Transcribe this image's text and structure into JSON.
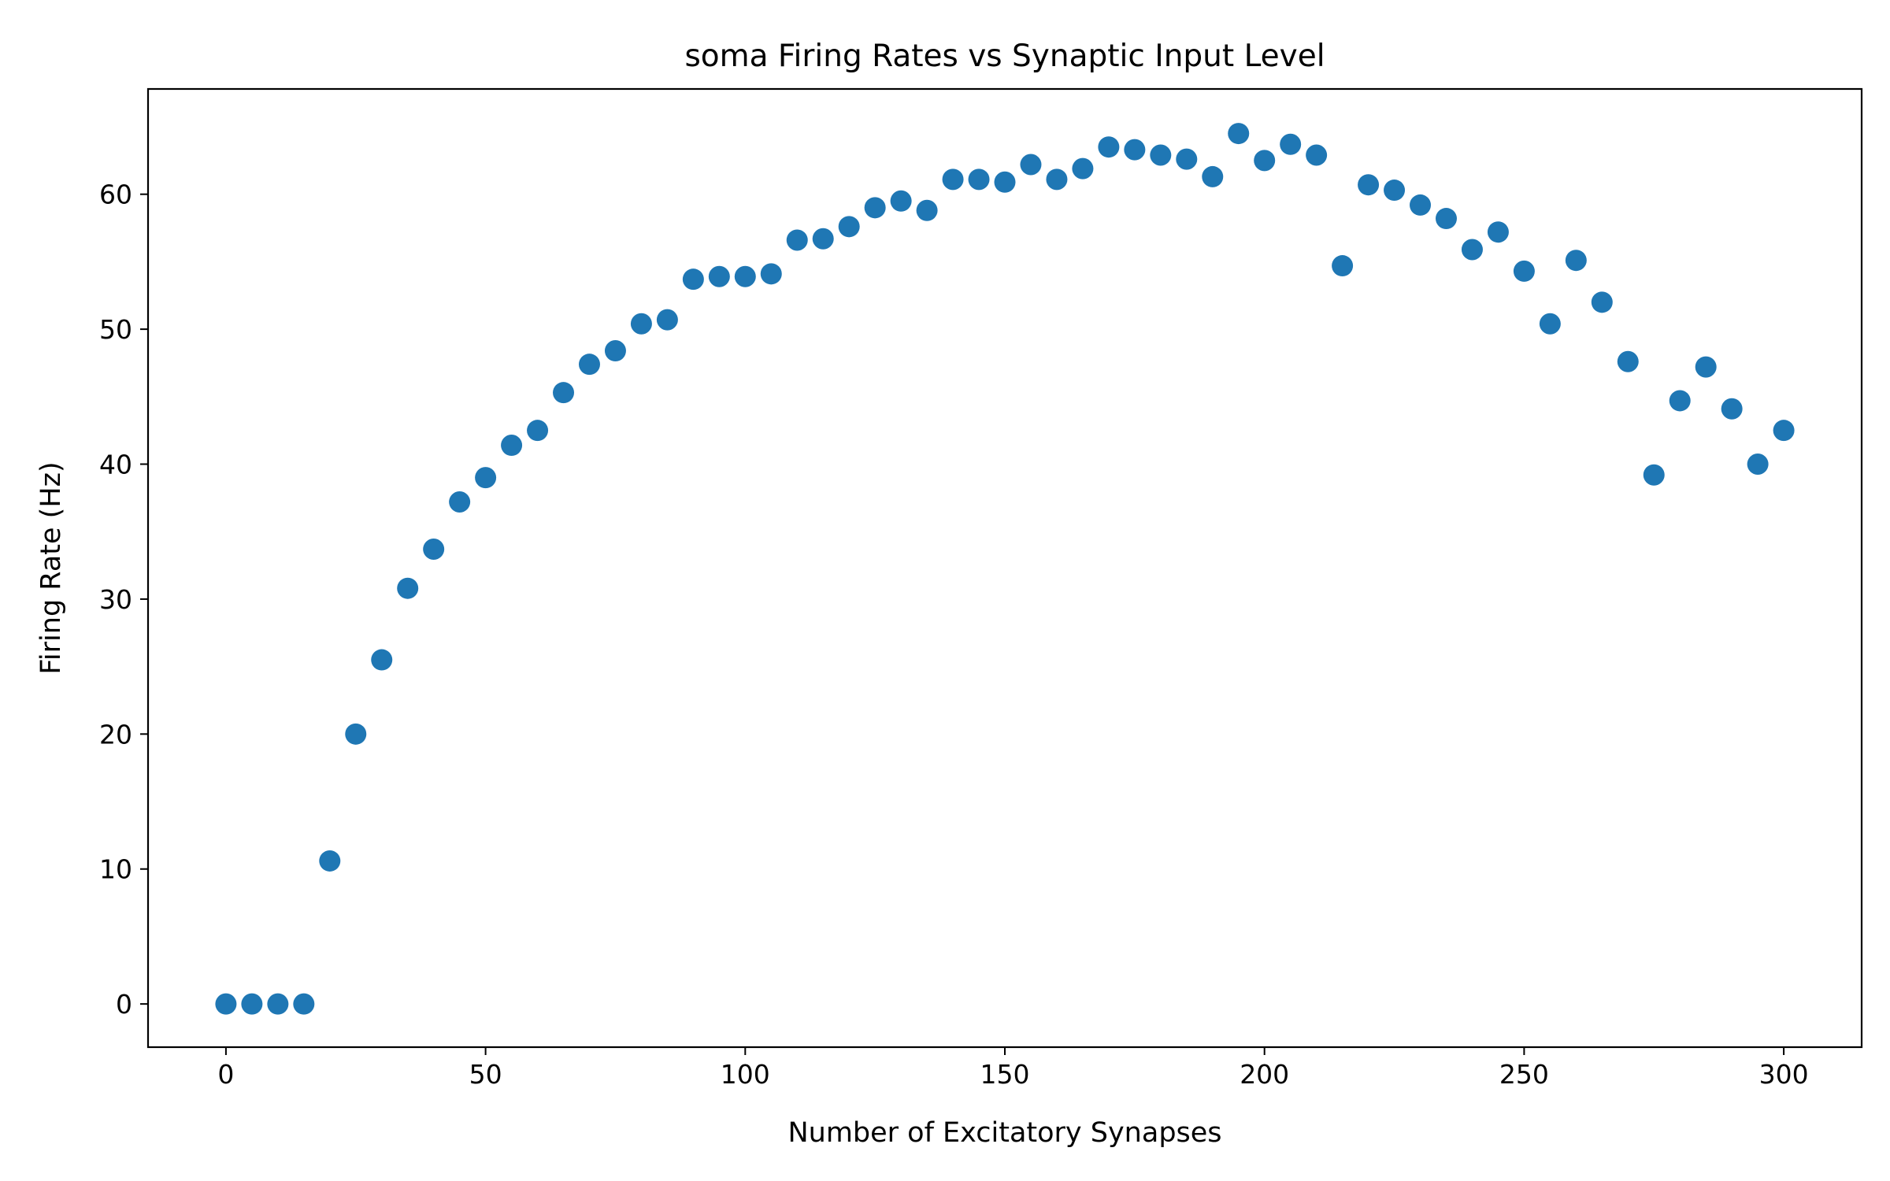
{
  "chart_data": {
    "type": "scatter",
    "title": "soma Firing Rates vs Synaptic Input Level",
    "xlabel": "Number of Excitatory Synapses",
    "ylabel": "Firing Rate (Hz)",
    "xlim": [
      -15,
      315
    ],
    "ylim": [
      -3.2,
      67.8
    ],
    "xticks": [
      0,
      50,
      100,
      150,
      200,
      250,
      300
    ],
    "yticks": [
      0,
      10,
      20,
      30,
      40,
      50,
      60
    ],
    "grid": false,
    "marker_color": "#1f77b4",
    "points": [
      [
        0,
        0
      ],
      [
        5,
        0
      ],
      [
        10,
        0
      ],
      [
        15,
        0
      ],
      [
        20,
        10.6
      ],
      [
        25,
        20.0
      ],
      [
        30,
        25.5
      ],
      [
        35,
        30.8
      ],
      [
        40,
        33.7
      ],
      [
        45,
        37.2
      ],
      [
        50,
        39.0
      ],
      [
        55,
        41.4
      ],
      [
        60,
        42.5
      ],
      [
        65,
        45.3
      ],
      [
        70,
        47.4
      ],
      [
        75,
        48.4
      ],
      [
        80,
        50.4
      ],
      [
        85,
        50.7
      ],
      [
        90,
        53.7
      ],
      [
        95,
        53.9
      ],
      [
        100,
        53.9
      ],
      [
        105,
        54.1
      ],
      [
        110,
        56.6
      ],
      [
        115,
        56.7
      ],
      [
        120,
        57.6
      ],
      [
        125,
        59.0
      ],
      [
        130,
        59.5
      ],
      [
        135,
        58.8
      ],
      [
        140,
        61.1
      ],
      [
        145,
        61.1
      ],
      [
        150,
        60.9
      ],
      [
        155,
        62.2
      ],
      [
        160,
        61.1
      ],
      [
        165,
        61.9
      ],
      [
        170,
        63.5
      ],
      [
        175,
        63.3
      ],
      [
        180,
        62.9
      ],
      [
        185,
        62.6
      ],
      [
        190,
        61.3
      ],
      [
        195,
        64.5
      ],
      [
        200,
        62.5
      ],
      [
        205,
        63.7
      ],
      [
        210,
        62.9
      ],
      [
        215,
        54.7
      ],
      [
        220,
        60.7
      ],
      [
        225,
        60.3
      ],
      [
        230,
        59.2
      ],
      [
        235,
        58.2
      ],
      [
        240,
        55.9
      ],
      [
        245,
        57.2
      ],
      [
        250,
        54.3
      ],
      [
        255,
        50.4
      ],
      [
        260,
        55.1
      ],
      [
        265,
        52.0
      ],
      [
        270,
        47.6
      ],
      [
        275,
        39.2
      ],
      [
        280,
        44.7
      ],
      [
        285,
        47.2
      ],
      [
        290,
        44.1
      ],
      [
        295,
        40.0
      ],
      [
        300,
        42.5
      ]
    ]
  }
}
